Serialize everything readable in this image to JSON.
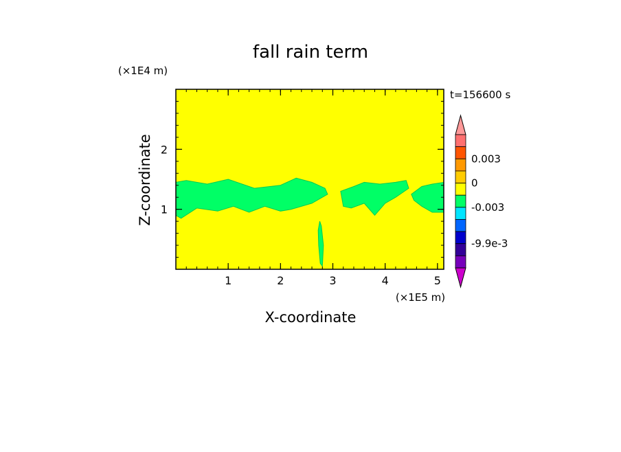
{
  "chart_data": {
    "type": "heatmap",
    "title": "fall rain term",
    "time_label": "t=156600 s",
    "xlabel": "X-coordinate",
    "ylabel": "Z-coordinate",
    "x_unit": "(×1E5 m)",
    "y_unit": "(×1E4 m)",
    "xlim": [
      0,
      5.12
    ],
    "ylim": [
      0,
      3.0
    ],
    "x_ticks": [
      1,
      2,
      3,
      4,
      5
    ],
    "y_ticks": [
      1,
      2
    ],
    "grid": false,
    "background_value_color": "#ffff00",
    "field_color": "#00ff66",
    "field_regions": [
      {
        "x": [
          0.0,
          0.2,
          0.6,
          1.0,
          1.5,
          2.0,
          2.3,
          2.6,
          2.85,
          2.9,
          2.6,
          2.2,
          2.0,
          1.7,
          1.4,
          1.1,
          0.8,
          0.4,
          0.1,
          0.0
        ],
        "z": [
          1.45,
          1.48,
          1.42,
          1.5,
          1.35,
          1.4,
          1.52,
          1.45,
          1.35,
          1.25,
          1.1,
          1.0,
          0.97,
          1.05,
          0.95,
          1.05,
          0.97,
          1.02,
          0.85,
          0.9
        ]
      },
      {
        "x": [
          3.15,
          3.4,
          3.6,
          3.9,
          4.2,
          4.4,
          4.45,
          4.2,
          4.0,
          3.8,
          3.6,
          3.35,
          3.2
        ],
        "z": [
          1.3,
          1.38,
          1.45,
          1.42,
          1.45,
          1.48,
          1.35,
          1.2,
          1.1,
          0.9,
          1.1,
          1.02,
          1.05
        ]
      },
      {
        "x": [
          4.5,
          4.7,
          4.9,
          5.12,
          5.12,
          4.9,
          4.7,
          4.55
        ],
        "z": [
          1.25,
          1.38,
          1.42,
          1.45,
          0.95,
          0.95,
          1.05,
          1.15
        ]
      },
      {
        "x": [
          2.72,
          2.75,
          2.78,
          2.82,
          2.8,
          2.76,
          2.73
        ],
        "z": [
          0.65,
          0.8,
          0.72,
          0.4,
          0.05,
          0.1,
          0.4
        ]
      }
    ],
    "colorbar": {
      "colors": [
        "#ff9999",
        "#ff7070",
        "#ff5500",
        "#ff9900",
        "#ffcc00",
        "#ffff00",
        "#00ff66",
        "#00e5ff",
        "#0066ff",
        "#0000cc",
        "#330099",
        "#7700bb",
        "#cc00cc"
      ],
      "labels": [
        "0.003",
        "0",
        "-0.003",
        "-9.9e-3"
      ],
      "extend": "both"
    }
  }
}
